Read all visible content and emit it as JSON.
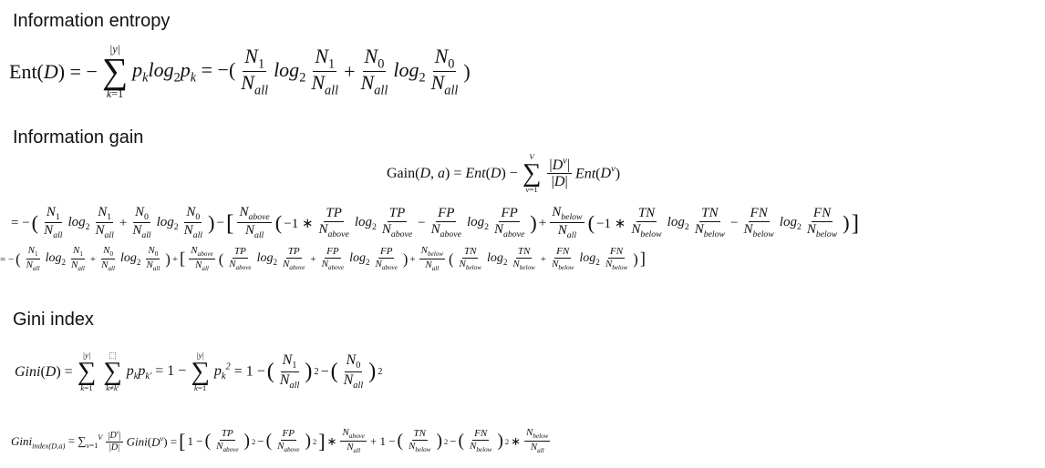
{
  "headings": {
    "entropy": "Information entropy",
    "gain": "Information gain",
    "gini": "Gini index"
  }
}
